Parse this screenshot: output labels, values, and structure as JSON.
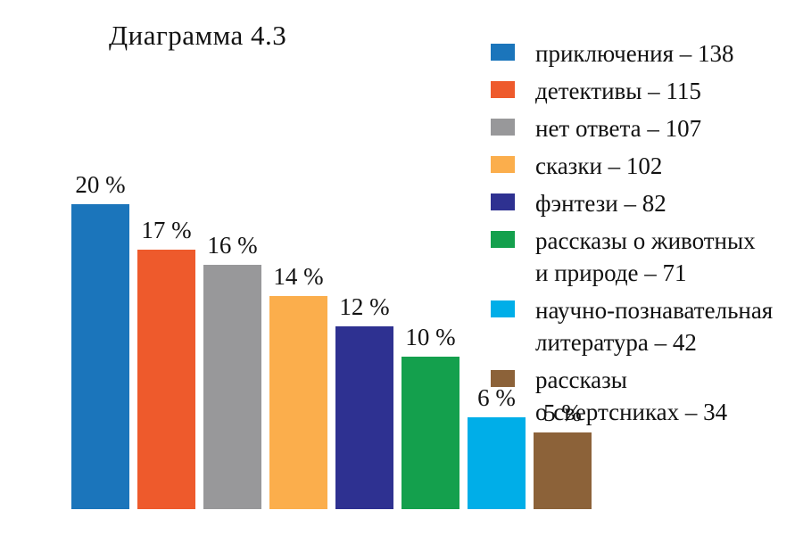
{
  "chart_data": {
    "type": "bar",
    "title": "Диаграмма 4.3",
    "legend_position": "right",
    "axes_visible": false,
    "grid": false,
    "categories": [
      "приключения",
      "детективы",
      "нет ответа",
      "сказки",
      "фэнтези",
      "рассказы о животных и природе",
      "научно-познавательная литература",
      "рассказы о свертсниках"
    ],
    "values_percent": [
      20,
      17,
      16,
      14,
      12,
      10,
      6,
      5
    ],
    "values_count": [
      138,
      115,
      107,
      102,
      82,
      71,
      42,
      34
    ],
    "bars": [
      {
        "label": "приключения",
        "count": 138,
        "percent": 20,
        "percent_label": "20 %",
        "color": "#1b75bb",
        "legend_lines": [
          "приключения – 138"
        ]
      },
      {
        "label": "детективы",
        "count": 115,
        "percent": 17,
        "percent_label": "17 %",
        "color": "#ee5a2c",
        "legend_lines": [
          "детективы – 115"
        ]
      },
      {
        "label": "нет ответа",
        "count": 107,
        "percent": 16,
        "percent_label": "16 %",
        "color": "#98989a",
        "legend_lines": [
          "нет ответа – 107"
        ]
      },
      {
        "label": "сказки",
        "count": 102,
        "percent": 14,
        "percent_label": "14 %",
        "color": "#fbae4c",
        "legend_lines": [
          "сказки – 102"
        ]
      },
      {
        "label": "фэнтези",
        "count": 82,
        "percent": 12,
        "percent_label": "12 %",
        "color": "#2e3191",
        "legend_lines": [
          "фэнтези – 82"
        ]
      },
      {
        "label": "рассказы о животных и природе",
        "count": 71,
        "percent": 10,
        "percent_label": "10 %",
        "color": "#14a04d",
        "legend_lines": [
          "рассказы о животных",
          "и природе – 71"
        ]
      },
      {
        "label": "научно-познавательная литература",
        "count": 42,
        "percent": 6,
        "percent_label": "6 %",
        "color": "#00aee8",
        "legend_lines": [
          "научно-познавательная",
          "литература – 42"
        ]
      },
      {
        "label": "рассказы о свертсниках",
        "count": 34,
        "percent": 5,
        "percent_label": "5 %",
        "color": "#8c6239",
        "legend_lines": [
          "рассказы",
          "о свертсниках – 34"
        ]
      }
    ]
  }
}
